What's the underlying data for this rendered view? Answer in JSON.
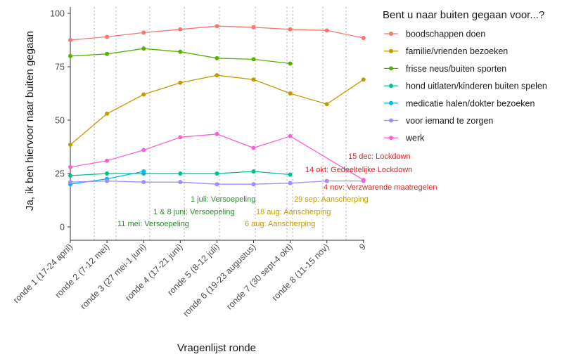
{
  "chart_data": {
    "type": "line",
    "xlabel": "Vragenlijst ronde",
    "ylabel": "Ja, ik ben hiervoor naar buiten gegaan",
    "ylim": [
      0,
      100
    ],
    "yticks": [
      0,
      25,
      50,
      75,
      100
    ],
    "grid": false,
    "categories": [
      "ronde 1 (17-24 april)",
      "ronde 2 (7-12 mei)",
      "ronde 3 (27 mei-1 juni)",
      "ronde 4 (17-21 juni)",
      "ronde 5 (8-12 juli)",
      "ronde 6 (19-23 augustus)",
      "ronde 7 (30 sept-4 okt)",
      "ronde 8 (11-15 nov)",
      "9"
    ],
    "legend": {
      "title": "Bent u naar buiten gegaan voor...?",
      "position": "right"
    },
    "series": [
      {
        "name": "boodschappen doen",
        "color": "#f8766d",
        "values": [
          87.5,
          89,
          91,
          92.5,
          94,
          93.5,
          92.5,
          92,
          88.5
        ]
      },
      {
        "name": "familie/vrienden bezoeken",
        "color": "#c49a00",
        "values": [
          38.5,
          53,
          62,
          67.5,
          71,
          69,
          62.5,
          57.5,
          69
        ]
      },
      {
        "name": "frisse neus/buiten sporten",
        "color": "#53b400",
        "values": [
          80,
          81,
          83.5,
          82,
          79,
          78.5,
          76.5,
          null,
          null
        ]
      },
      {
        "name": "hond uitlaten/kinderen buiten spelen",
        "color": "#00c094",
        "values": [
          24,
          25,
          25,
          25,
          25,
          26,
          24.5,
          null,
          null
        ]
      },
      {
        "name": "medicatie halen/dokter bezoeken",
        "color": "#00b6eb",
        "values": [
          20,
          22.5,
          26,
          null,
          null,
          null,
          null,
          null,
          null
        ]
      },
      {
        "name": "voor iemand te zorgen",
        "color": "#a58aff",
        "values": [
          21,
          21.5,
          21,
          21,
          20,
          20,
          20.5,
          21.5,
          21.5
        ]
      },
      {
        "name": "werk",
        "color": "#fb61d7",
        "values": [
          28,
          31,
          36,
          42,
          43.5,
          37,
          42.5,
          null,
          22
        ]
      }
    ],
    "annotations": [
      {
        "text": "11 mei: Versoepeling",
        "color": "#2e8b2e"
      },
      {
        "text": "1 & 8 juni: Versoepeling",
        "color": "#2e8b2e"
      },
      {
        "text": "1 juli: Versoepeling",
        "color": "#2e8b2e"
      },
      {
        "text": "6 aug: Aanscherping",
        "color": "#c49a00"
      },
      {
        "text": "18 aug: Aanscherping",
        "color": "#c49a00"
      },
      {
        "text": "29 sep: Aanscherping",
        "color": "#c49a00"
      },
      {
        "text": "4 nov: Verzwarende maatregelen",
        "color": "#d62728"
      },
      {
        "text": "14 okt: Gedeeltelijke Lockdown",
        "color": "#d62728"
      },
      {
        "text": "15 dec: Lockdown",
        "color": "#d62728"
      }
    ]
  }
}
